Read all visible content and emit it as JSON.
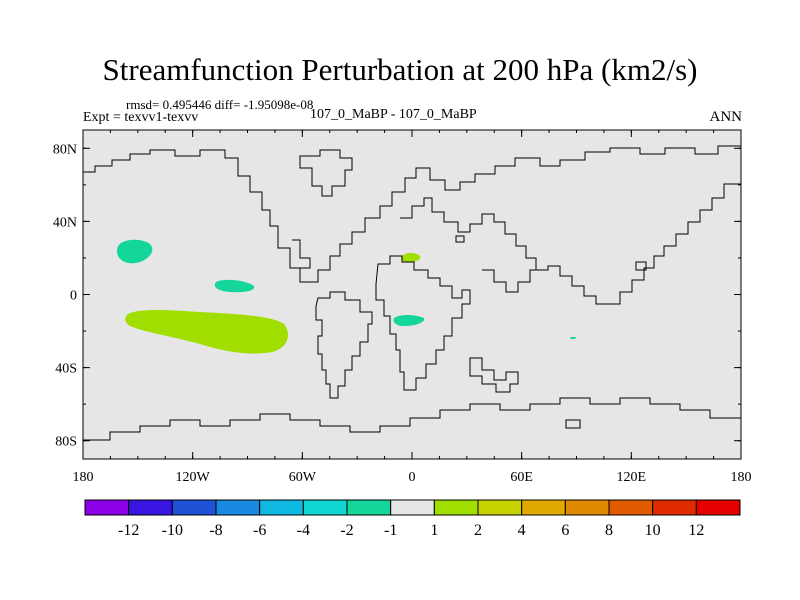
{
  "header": {
    "title": "Streamfunction Perturbation at 200 hPa (km2/s)",
    "stats": "rmsd= 0.495446 diff= -1.95098e-08",
    "experiment": "Expt = texvv1-texvv",
    "center_label": "107_0_MaBP - 107_0_MaBP",
    "season": "ANN"
  },
  "map": {
    "lon_ticks": [
      "180",
      "120W",
      "60W",
      "0",
      "60E",
      "120E",
      "180"
    ],
    "lat_ticks": [
      "80N",
      "40N",
      "0",
      "40S",
      "80S"
    ],
    "ocean_color": "#e6e6e6",
    "coast_color": "#000000"
  },
  "colorbar": {
    "labels": [
      "-12",
      "-10",
      "-8",
      "-6",
      "-4",
      "-2",
      "-1",
      "1",
      "2",
      "4",
      "6",
      "8",
      "10",
      "12"
    ],
    "colors": [
      "#8b00e6",
      "#3a14e0",
      "#1f52d6",
      "#1a8ae0",
      "#0fb8e0",
      "#0fd6d0",
      "#14d69a",
      "#e6e6e6",
      "#a0de00",
      "#c8d200",
      "#e0aa00",
      "#e08a00",
      "#e05a00",
      "#e02a00",
      "#e60000"
    ]
  },
  "chart_data": {
    "type": "heatmap",
    "title": "Streamfunction Perturbation at 200 hPa (km2/s)",
    "lon_range": [
      -180,
      180
    ],
    "lat_range": [
      -90,
      90
    ],
    "contour_levels": [
      -12,
      -10,
      -8,
      -6,
      -4,
      -2,
      -1,
      1,
      2,
      4,
      6,
      8,
      10,
      12
    ],
    "regions": [
      {
        "value_range": [
          -2,
          -1
        ],
        "center_lon": -150,
        "center_lat": 22
      },
      {
        "value_range": [
          -2,
          -1
        ],
        "center_lon": -104,
        "center_lat": 5
      },
      {
        "value_range": [
          1,
          2
        ],
        "center_lon": -130,
        "center_lat": -13
      },
      {
        "value_range": [
          1,
          2
        ],
        "center_lon": -2,
        "center_lat": 20
      },
      {
        "value_range": [
          -2,
          -1
        ],
        "center_lon": -2,
        "center_lat": -13
      },
      {
        "value_range": [
          -2,
          -1
        ],
        "center_lon": 88,
        "center_lat": -23
      }
    ]
  }
}
